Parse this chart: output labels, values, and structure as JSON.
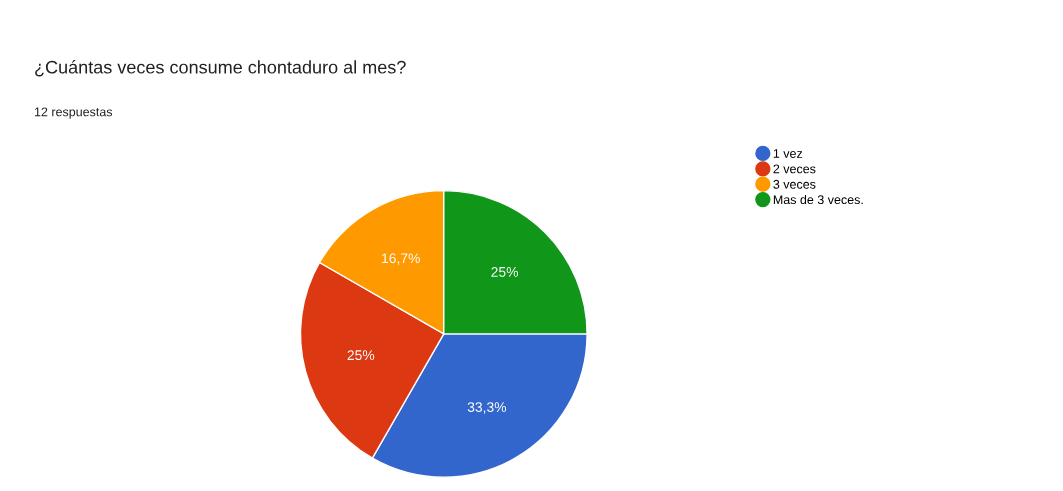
{
  "chart_data": {
    "type": "pie",
    "title": "¿Cuántas veces consume chontaduro al mes?",
    "subtitle": "12 respuestas",
    "categories": [
      "1 vez",
      "2 veces",
      "3 veces",
      "Mas de 3 veces."
    ],
    "values": [
      33.3,
      25,
      16.7,
      25
    ],
    "colors": [
      "#3366cc",
      "#dc3912",
      "#ff9900",
      "#109618"
    ],
    "value_labels": [
      "33,3%",
      "25%",
      "16,7%",
      "25%"
    ],
    "legend": "right"
  }
}
